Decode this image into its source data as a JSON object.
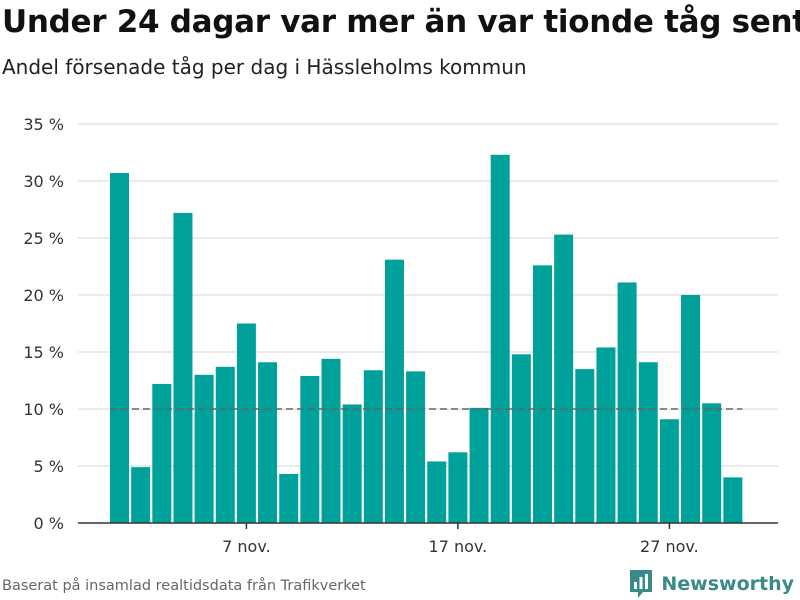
{
  "title": "Under 24 dagar var mer än var tionde tåg sent",
  "subtitle": "Andel försenade tåg per dag i Hässleholms kommun",
  "footer": "Baserat på insamlad realtidsdata från Trafikverket",
  "brand": {
    "name": "Newsworthy",
    "icon": "newsworthy-logo-icon",
    "color": "#3a8a8a"
  },
  "colors": {
    "bar": "#00a19a",
    "reference_line": "#666666",
    "grid": "#dddddd",
    "axis": "#333333"
  },
  "chart_data": {
    "type": "bar",
    "x": [
      "1 nov.",
      "2 nov.",
      "3 nov.",
      "4 nov.",
      "5 nov.",
      "6 nov.",
      "7 nov.",
      "8 nov.",
      "9 nov.",
      "10 nov.",
      "11 nov.",
      "12 nov.",
      "13 nov.",
      "14 nov.",
      "15 nov.",
      "16 nov.",
      "17 nov.",
      "18 nov.",
      "19 nov.",
      "20 nov.",
      "21 nov.",
      "22 nov.",
      "23 nov.",
      "24 nov.",
      "25 nov.",
      "26 nov.",
      "27 nov.",
      "28 nov.",
      "29 nov.",
      "30 nov."
    ],
    "values": [
      30.7,
      4.9,
      12.2,
      27.2,
      13.0,
      13.7,
      17.5,
      14.1,
      4.3,
      12.9,
      14.4,
      10.4,
      13.4,
      23.1,
      13.3,
      5.4,
      6.2,
      10.1,
      32.3,
      14.8,
      22.6,
      25.3,
      13.5,
      15.4,
      21.1,
      14.1,
      9.1,
      20.0,
      10.5,
      4.0
    ],
    "x_tick_labels": [
      "7 nov.",
      "17 nov.",
      "27 nov."
    ],
    "y_ticks": [
      0,
      5,
      10,
      15,
      20,
      25,
      30,
      35
    ],
    "y_tick_suffix": " %",
    "ylim": [
      0,
      35
    ],
    "reference_line": 10,
    "grid": true,
    "legend": "none"
  }
}
